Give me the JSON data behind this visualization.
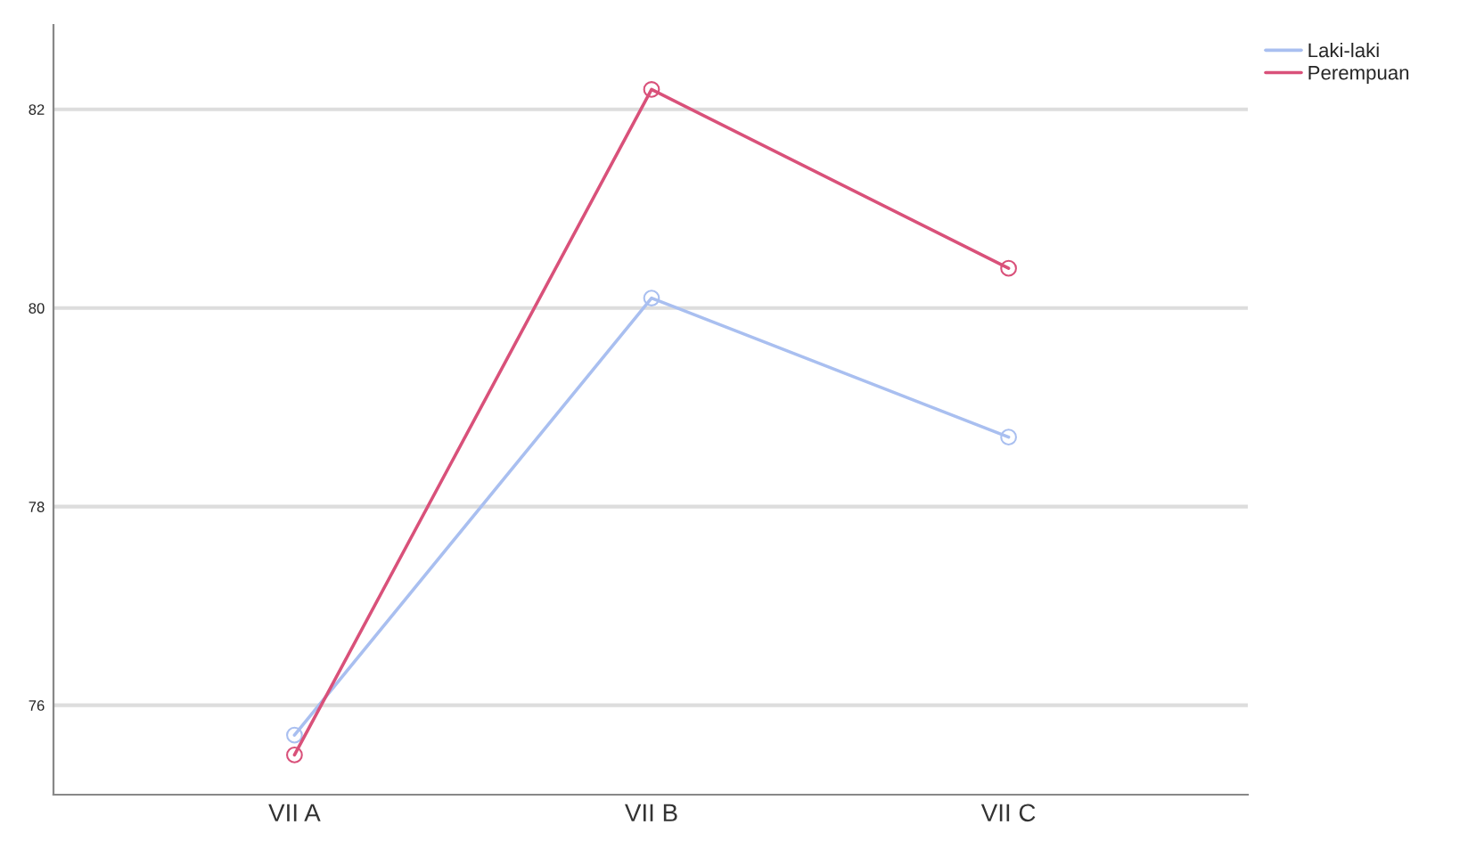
{
  "chart_data": {
    "type": "line",
    "categories": [
      "VII A",
      "VII B",
      "VII C"
    ],
    "series": [
      {
        "name": "Laki-laki",
        "color": "#a9bff0",
        "values": [
          75.7,
          80.1,
          78.7
        ]
      },
      {
        "name": "Perempuan",
        "color": "#d9517a",
        "values": [
          75.5,
          82.2,
          80.4
        ]
      }
    ],
    "ylim": [
      75.1,
      82.85
    ],
    "yticks": [
      76,
      78,
      80,
      82
    ],
    "grid": "y",
    "legend": "top right",
    "marker": "circle"
  }
}
